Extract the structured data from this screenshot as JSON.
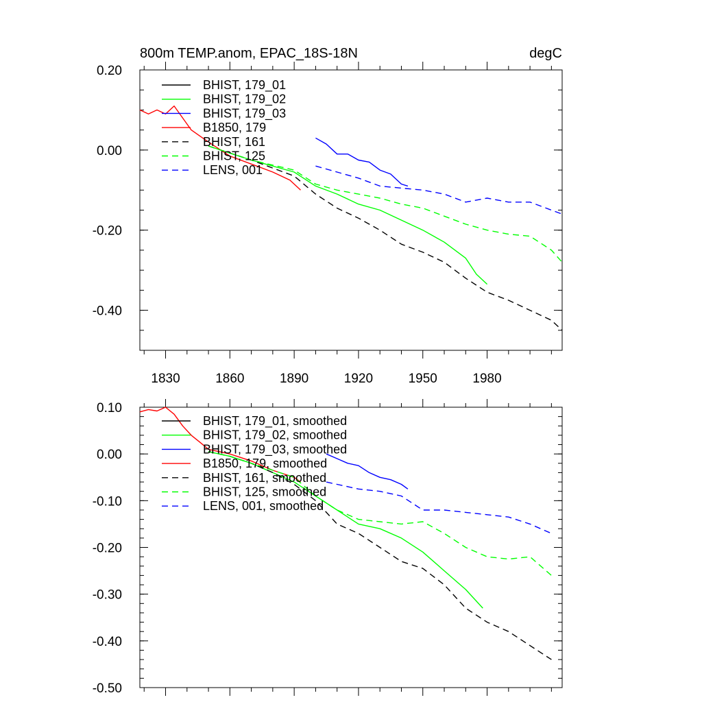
{
  "chart_data": [
    {
      "type": "line",
      "title": "800m TEMP.anom, EPAC_18S-18N",
      "units": "degC",
      "xlim": [
        1818,
        2015
      ],
      "ylim": [
        -0.5,
        0.2
      ],
      "xticks": [
        1830,
        1860,
        1890,
        1920,
        1950,
        1980
      ],
      "xtick_labels": [
        "1830",
        "1860",
        "1890",
        "1920",
        "1950",
        "1980"
      ],
      "yticks": [
        0.2,
        0.0,
        -0.2,
        -0.4
      ],
      "ytick_labels": [
        "0.20",
        "0.00",
        "-0.20",
        "-0.40"
      ],
      "grid": false,
      "legend": "top-left",
      "series": [
        {
          "name": "BHIST, 179_01",
          "color": "#000000",
          "style": "solid",
          "x": [],
          "y": []
        },
        {
          "name": "BHIST, 179_02",
          "color": "#00ff00",
          "style": "solid",
          "x": [
            1850,
            1870,
            1890,
            1900,
            1910,
            1920,
            1930,
            1940,
            1950,
            1960,
            1970,
            1975,
            1980
          ],
          "y": [
            0.01,
            -0.025,
            -0.055,
            -0.09,
            -0.11,
            -0.135,
            -0.15,
            -0.175,
            -0.2,
            -0.23,
            -0.27,
            -0.31,
            -0.335
          ]
        },
        {
          "name": "BHIST, 179_03",
          "color": "#0000ff",
          "style": "solid",
          "x": [
            1900,
            1905,
            1910,
            1915,
            1920,
            1925,
            1930,
            1935,
            1940,
            1943
          ],
          "y": [
            0.03,
            0.015,
            -0.01,
            -0.01,
            -0.025,
            -0.03,
            -0.05,
            -0.06,
            -0.085,
            -0.09
          ]
        },
        {
          "name": "B1850, 179",
          "color": "#ff0000",
          "style": "solid",
          "x": [
            1818,
            1822,
            1826,
            1830,
            1834,
            1838,
            1842,
            1846,
            1850,
            1860,
            1870,
            1880,
            1888,
            1893
          ],
          "y": [
            0.1,
            0.09,
            0.1,
            0.09,
            0.11,
            0.08,
            0.05,
            0.035,
            0.02,
            -0.015,
            -0.035,
            -0.055,
            -0.075,
            -0.1
          ]
        },
        {
          "name": "BHIST, 161",
          "color": "#000000",
          "style": "dashed",
          "x": [
            1850,
            1870,
            1890,
            1900,
            1910,
            1920,
            1930,
            1940,
            1950,
            1960,
            1970,
            1980,
            1990,
            2000,
            2010,
            2015
          ],
          "y": [
            0.01,
            -0.025,
            -0.065,
            -0.11,
            -0.145,
            -0.17,
            -0.2,
            -0.235,
            -0.255,
            -0.28,
            -0.32,
            -0.355,
            -0.375,
            -0.4,
            -0.425,
            -0.45
          ]
        },
        {
          "name": "BHIST, 125",
          "color": "#00ff00",
          "style": "dashed",
          "x": [
            1850,
            1870,
            1890,
            1900,
            1910,
            1920,
            1930,
            1940,
            1950,
            1960,
            1970,
            1980,
            1990,
            2000,
            2010,
            2015
          ],
          "y": [
            0.01,
            -0.025,
            -0.05,
            -0.085,
            -0.1,
            -0.11,
            -0.12,
            -0.135,
            -0.145,
            -0.165,
            -0.185,
            -0.2,
            -0.21,
            -0.215,
            -0.25,
            -0.28
          ]
        },
        {
          "name": "LENS, 001",
          "color": "#0000ff",
          "style": "dashed",
          "x": [
            1900,
            1910,
            1920,
            1930,
            1940,
            1950,
            1960,
            1970,
            1980,
            1990,
            2000,
            2010,
            2015
          ],
          "y": [
            -0.04,
            -0.055,
            -0.07,
            -0.09,
            -0.095,
            -0.1,
            -0.11,
            -0.13,
            -0.12,
            -0.13,
            -0.13,
            -0.15,
            -0.16
          ]
        }
      ]
    },
    {
      "type": "line",
      "xlim": [
        1818,
        2015
      ],
      "ylim": [
        -0.5,
        0.1
      ],
      "xticks": [
        1830,
        1860,
        1890,
        1920,
        1950,
        1980
      ],
      "xtick_labels": [],
      "yticks": [
        0.1,
        0.0,
        -0.1,
        -0.2,
        -0.3,
        -0.4,
        -0.5
      ],
      "ytick_labels": [
        "0.10",
        "0.00",
        "-0.10",
        "-0.20",
        "-0.30",
        "-0.40",
        "-0.50"
      ],
      "grid": false,
      "legend": "top-left",
      "series": [
        {
          "name": "BHIST, 179_01, smoothed",
          "color": "#000000",
          "style": "solid",
          "x": [],
          "y": []
        },
        {
          "name": "BHIST, 179_02, smoothed",
          "color": "#00ff00",
          "style": "solid",
          "x": [
            1850,
            1860,
            1870,
            1880,
            1890,
            1900,
            1910,
            1920,
            1930,
            1940,
            1950,
            1960,
            1970,
            1978
          ],
          "y": [
            0.005,
            -0.005,
            -0.02,
            -0.04,
            -0.06,
            -0.09,
            -0.12,
            -0.15,
            -0.16,
            -0.18,
            -0.21,
            -0.25,
            -0.29,
            -0.33
          ]
        },
        {
          "name": "BHIST, 179_03, smoothed",
          "color": "#0000ff",
          "style": "solid",
          "x": [
            1905,
            1910,
            1915,
            1920,
            1925,
            1930,
            1935,
            1940,
            1943
          ],
          "y": [
            0.0,
            -0.01,
            -0.02,
            -0.025,
            -0.04,
            -0.05,
            -0.055,
            -0.065,
            -0.075
          ]
        },
        {
          "name": "B1850, 179, smoothed",
          "color": "#ff0000",
          "style": "solid",
          "x": [
            1818,
            1822,
            1826,
            1830,
            1834,
            1838,
            1842,
            1846,
            1850,
            1860,
            1870,
            1880,
            1890,
            1893
          ],
          "y": [
            0.09,
            0.095,
            0.092,
            0.1,
            0.085,
            0.06,
            0.04,
            0.025,
            0.01,
            0.0,
            -0.015,
            -0.035,
            -0.05,
            -0.06
          ]
        },
        {
          "name": "BHIST, 161, smoothed",
          "color": "#000000",
          "style": "dashed",
          "x": [
            1850,
            1860,
            1870,
            1880,
            1890,
            1900,
            1910,
            1920,
            1930,
            1940,
            1950,
            1960,
            1970,
            1980,
            1990,
            2000,
            2010
          ],
          "y": [
            0.005,
            -0.005,
            -0.02,
            -0.04,
            -0.065,
            -0.1,
            -0.15,
            -0.17,
            -0.2,
            -0.23,
            -0.245,
            -0.28,
            -0.33,
            -0.36,
            -0.38,
            -0.41,
            -0.44
          ]
        },
        {
          "name": "BHIST, 125, smoothed",
          "color": "#00ff00",
          "style": "dashed",
          "x": [
            1850,
            1860,
            1870,
            1880,
            1890,
            1900,
            1910,
            1920,
            1930,
            1940,
            1950,
            1960,
            1970,
            1980,
            1990,
            2000,
            2010
          ],
          "y": [
            0.005,
            -0.005,
            -0.02,
            -0.035,
            -0.05,
            -0.09,
            -0.12,
            -0.14,
            -0.145,
            -0.15,
            -0.145,
            -0.17,
            -0.2,
            -0.22,
            -0.225,
            -0.22,
            -0.26
          ]
        },
        {
          "name": "LENS, 001, smoothed",
          "color": "#0000ff",
          "style": "dashed",
          "x": [
            1905,
            1910,
            1920,
            1930,
            1940,
            1950,
            1960,
            1970,
            1980,
            1990,
            2000,
            2010
          ],
          "y": [
            -0.06,
            -0.065,
            -0.075,
            -0.08,
            -0.09,
            -0.12,
            -0.12,
            -0.125,
            -0.13,
            -0.135,
            -0.15,
            -0.17
          ]
        }
      ]
    }
  ]
}
